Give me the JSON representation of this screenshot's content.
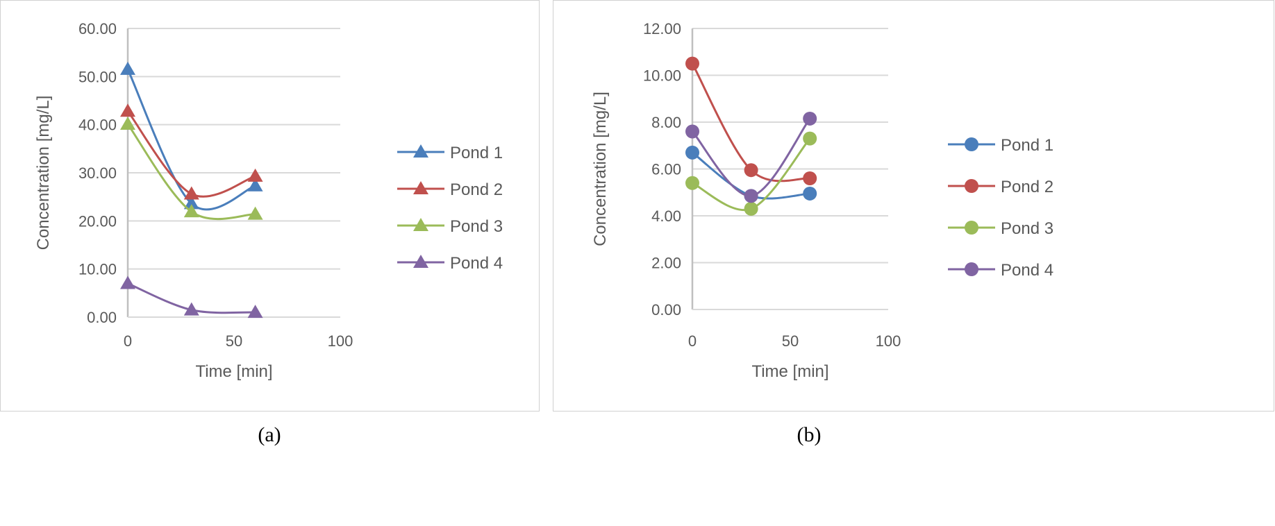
{
  "chart_data": [
    {
      "type": "line",
      "caption": "(a)",
      "xlabel": "Time [min]",
      "ylabel": "Concentration  [mg/L]",
      "xlim": [
        0,
        100
      ],
      "ylim": [
        0,
        60
      ],
      "xticks": [
        "0",
        "50",
        "100"
      ],
      "yticks": [
        "0.00",
        "10.00",
        "20.00",
        "30.00",
        "40.00",
        "50.00",
        "60.00"
      ],
      "grid": true,
      "marker": "triangle",
      "legend_position": "right",
      "x": [
        0,
        30,
        60
      ],
      "series": [
        {
          "name": "Pond 1",
          "color": "#4a7ebb",
          "values": [
            51.5,
            23.6,
            27.3
          ]
        },
        {
          "name": "Pond 2",
          "color": "#c0504d",
          "values": [
            42.8,
            25.6,
            29.3
          ]
        },
        {
          "name": "Pond 3",
          "color": "#9bbb59",
          "values": [
            40.1,
            21.9,
            21.4
          ]
        },
        {
          "name": "Pond 4",
          "color": "#8064a2",
          "values": [
            7.0,
            1.5,
            1.0
          ]
        }
      ]
    },
    {
      "type": "line",
      "caption": "(b)",
      "xlabel": "Time [min]",
      "ylabel": "Concentration  [mg/L]",
      "xlim": [
        0,
        100
      ],
      "ylim": [
        0,
        12
      ],
      "xticks": [
        "0",
        "50",
        "100"
      ],
      "yticks": [
        "0.00",
        "2.00",
        "4.00",
        "6.00",
        "8.00",
        "10.00",
        "12.00"
      ],
      "grid": true,
      "marker": "circle",
      "legend_position": "right",
      "x": [
        0,
        30,
        60
      ],
      "series": [
        {
          "name": "Pond 1",
          "color": "#4a7ebb",
          "values": [
            6.7,
            4.85,
            4.95
          ]
        },
        {
          "name": "Pond 2",
          "color": "#c0504d",
          "values": [
            10.5,
            5.95,
            5.6
          ]
        },
        {
          "name": "Pond 3",
          "color": "#9bbb59",
          "values": [
            5.4,
            4.3,
            7.3
          ]
        },
        {
          "name": "Pond 4",
          "color": "#8064a2",
          "values": [
            7.6,
            4.85,
            8.15
          ]
        }
      ]
    }
  ]
}
